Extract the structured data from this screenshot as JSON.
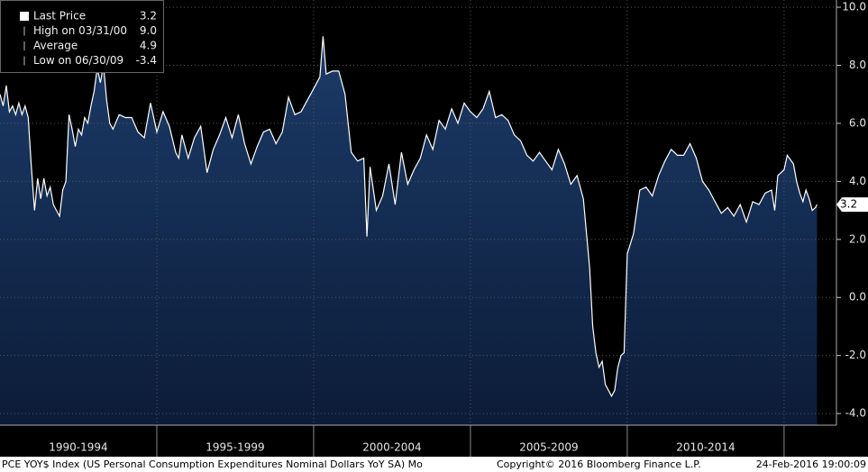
{
  "chart_data": {
    "type": "area",
    "legend": [
      {
        "name": "Last Price",
        "stat": "3.2"
      },
      {
        "name": "High on 03/31/00",
        "stat": "9.0"
      },
      {
        "name": "Average",
        "stat": "4.9"
      },
      {
        "name": "Low on 06/30/09",
        "stat": "-3.4"
      }
    ],
    "last_value_tag": {
      "value": 3.2,
      "label": "3.2"
    },
    "footer_left": "PCE YOY$ Index (US Personal Consumption Expenditures Nominal Dollars YoY SA)  Mo",
    "footer_center": "Copyright© 2016 Bloomberg Finance L.P.",
    "footer_right": "24-Feb-2016 19:00:09",
    "xlim": [
      1990,
      2016.67
    ],
    "xticks": [
      {
        "value": 1992.5,
        "label": "1990-1994"
      },
      {
        "value": 1997.5,
        "label": "1995-1999"
      },
      {
        "value": 2002.5,
        "label": "2000-2004"
      },
      {
        "value": 2007.5,
        "label": "2005-2009"
      },
      {
        "value": 2012.5,
        "label": "2010-2014"
      }
    ],
    "ylim": [
      -4.4,
      10.25
    ],
    "yticks": [
      {
        "value": 10,
        "label": "10.0"
      },
      {
        "value": 8,
        "label": "8.0"
      },
      {
        "value": 6,
        "label": "6.0"
      },
      {
        "value": 4,
        "label": "4.0"
      },
      {
        "value": 2,
        "label": "2.0"
      },
      {
        "value": 0,
        "label": "0.0"
      },
      {
        "value": -2,
        "label": "-2.0"
      },
      {
        "value": -4,
        "label": "-4.0"
      }
    ],
    "grid": true,
    "series": [
      {
        "name": "Last Price",
        "color": "#ffffff",
        "fill": "#15325c",
        "x": [
          1990.0,
          1990.1,
          1990.2,
          1990.3,
          1990.4,
          1990.5,
          1990.6,
          1990.7,
          1990.8,
          1990.9,
          1991.0,
          1991.1,
          1991.2,
          1991.3,
          1991.4,
          1991.5,
          1991.6,
          1991.7,
          1991.8,
          1991.9,
          1992.0,
          1992.1,
          1992.2,
          1992.3,
          1992.4,
          1992.5,
          1992.6,
          1992.7,
          1992.8,
          1992.9,
          1993.0,
          1993.1,
          1993.2,
          1993.3,
          1993.4,
          1993.5,
          1993.6,
          1993.8,
          1994.0,
          1994.2,
          1994.4,
          1994.6,
          1994.8,
          1995.0,
          1995.2,
          1995.4,
          1995.6,
          1995.7,
          1995.8,
          1996.0,
          1996.2,
          1996.4,
          1996.6,
          1996.8,
          1997.0,
          1997.2,
          1997.4,
          1997.6,
          1997.8,
          1998.0,
          1998.2,
          1998.4,
          1998.6,
          1998.8,
          1999.0,
          1999.2,
          1999.4,
          1999.6,
          1999.8,
          2000.0,
          2000.2,
          2000.3,
          2000.4,
          2000.6,
          2000.8,
          2001.0,
          2001.2,
          2001.4,
          2001.6,
          2001.7,
          2001.8,
          2002.0,
          2002.2,
          2002.4,
          2002.6,
          2002.8,
          2003.0,
          2003.2,
          2003.4,
          2003.6,
          2003.8,
          2004.0,
          2004.2,
          2004.4,
          2004.6,
          2004.8,
          2005.0,
          2005.2,
          2005.4,
          2005.6,
          2005.8,
          2006.0,
          2006.2,
          2006.4,
          2006.6,
          2006.8,
          2007.0,
          2007.2,
          2007.4,
          2007.6,
          2007.8,
          2008.0,
          2008.2,
          2008.4,
          2008.6,
          2008.8,
          2008.9,
          2009.0,
          2009.1,
          2009.2,
          2009.3,
          2009.5,
          2009.6,
          2009.7,
          2009.8,
          2009.9,
          2010.0,
          2010.2,
          2010.4,
          2010.6,
          2010.8,
          2011.0,
          2011.2,
          2011.4,
          2011.6,
          2011.8,
          2012.0,
          2012.2,
          2012.4,
          2012.6,
          2012.8,
          2013.0,
          2013.2,
          2013.4,
          2013.6,
          2013.8,
          2014.0,
          2014.2,
          2014.4,
          2014.6,
          2014.7,
          2014.8,
          2015.0,
          2015.1,
          2015.3,
          2015.4,
          2015.5,
          2015.6,
          2015.7,
          2015.8,
          2015.9,
          2016.0,
          2016.05
        ],
        "values": [
          7.0,
          6.6,
          7.3,
          6.4,
          6.6,
          6.3,
          6.7,
          6.3,
          6.6,
          6.2,
          4.5,
          3.0,
          4.1,
          3.4,
          4.1,
          3.5,
          3.8,
          3.2,
          3.0,
          2.8,
          3.7,
          4.0,
          6.3,
          5.8,
          5.2,
          5.8,
          5.6,
          6.2,
          6.0,
          6.6,
          7.1,
          7.9,
          7.4,
          8.0,
          6.8,
          6.0,
          5.8,
          6.3,
          6.2,
          6.2,
          5.7,
          5.5,
          6.7,
          5.7,
          6.4,
          5.9,
          5.0,
          4.8,
          5.6,
          4.8,
          5.5,
          5.9,
          4.3,
          5.1,
          5.6,
          6.2,
          5.5,
          6.3,
          5.3,
          4.6,
          5.2,
          5.7,
          5.8,
          5.3,
          5.7,
          6.9,
          6.3,
          6.4,
          6.8,
          7.2,
          7.6,
          9.0,
          7.7,
          7.8,
          7.8,
          7.0,
          5.0,
          4.7,
          4.8,
          2.1,
          4.5,
          3.0,
          3.5,
          4.6,
          3.2,
          5.0,
          3.9,
          4.4,
          4.8,
          5.6,
          5.1,
          6.1,
          5.8,
          6.5,
          6.0,
          6.7,
          6.4,
          6.2,
          6.5,
          7.1,
          6.2,
          6.3,
          6.1,
          5.6,
          5.4,
          4.9,
          4.7,
          5.0,
          4.7,
          4.4,
          5.1,
          4.6,
          3.9,
          4.2,
          3.4,
          1.0,
          -1.0,
          -1.9,
          -2.4,
          -2.2,
          -3.0,
          -3.4,
          -3.2,
          -2.4,
          -2.0,
          -1.9,
          1.5,
          2.2,
          3.7,
          3.8,
          3.5,
          4.2,
          4.7,
          5.1,
          4.9,
          4.9,
          5.3,
          4.8,
          4.0,
          3.7,
          3.3,
          2.9,
          3.1,
          2.8,
          3.2,
          2.6,
          3.3,
          3.2,
          3.6,
          3.7,
          3.0,
          4.2,
          4.4,
          4.9,
          4.6,
          4.0,
          3.6,
          3.3,
          3.7,
          3.4,
          3.0,
          3.1,
          3.2
        ]
      }
    ]
  }
}
